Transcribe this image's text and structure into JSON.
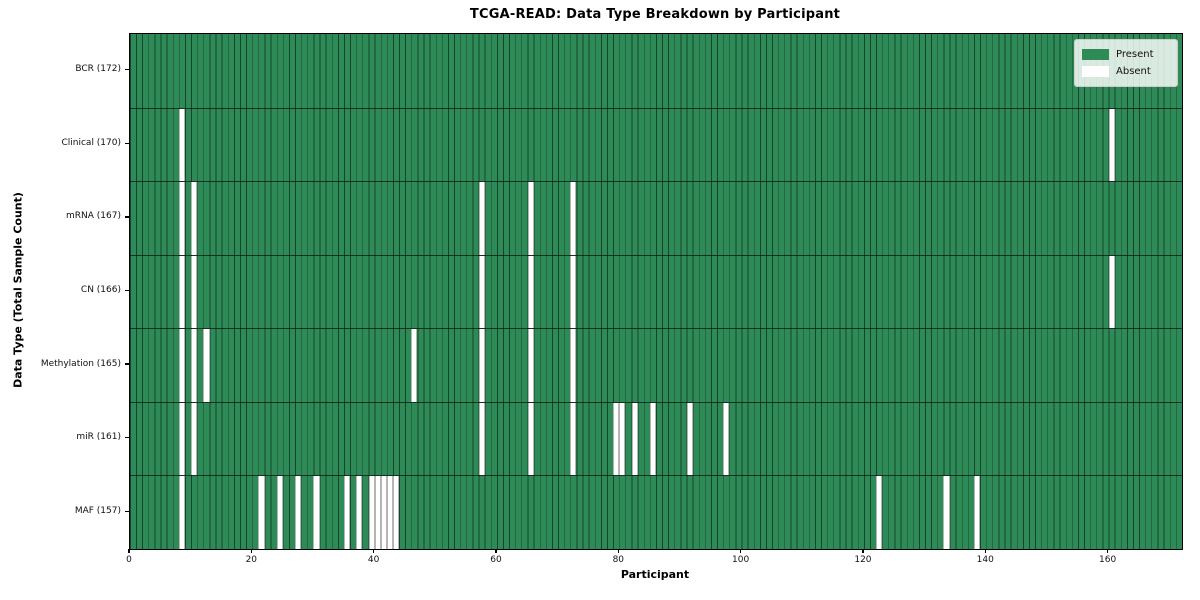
{
  "chart_data": {
    "type": "heatmap",
    "title": "TCGA-READ: Data Type Breakdown by Participant",
    "xlabel": "Participant",
    "ylabel": "Data Type (Total Sample Count)",
    "x_ticks": [
      0,
      20,
      40,
      60,
      80,
      100,
      120,
      140,
      160
    ],
    "x_max": 172,
    "n_participants": 172,
    "grid": "cell-borders",
    "legend_position": "upper right",
    "legend": {
      "present_label": "Present",
      "absent_label": "Absent"
    },
    "colors": {
      "present": "#2e8b57",
      "absent": "#ffffff",
      "cell_edge_on_green": "rgba(0,0,0,0.5)",
      "row_separator": "rgba(0,0,0,0.62)"
    },
    "rows": [
      {
        "name": "BCR",
        "label": "BCR (172)",
        "total": 172,
        "absent_participants": []
      },
      {
        "name": "Clinical",
        "label": "Clinical (170)",
        "total": 170,
        "absent_participants": [
          8,
          160
        ]
      },
      {
        "name": "mRNA",
        "label": "mRNA (167)",
        "total": 167,
        "absent_participants": [
          8,
          10,
          57,
          65,
          72
        ]
      },
      {
        "name": "CN",
        "label": "CN (166)",
        "total": 166,
        "absent_participants": [
          8,
          10,
          57,
          65,
          72,
          160
        ]
      },
      {
        "name": "Methylation",
        "label": "Methylation (165)",
        "total": 165,
        "absent_participants": [
          8,
          10,
          12,
          46,
          57,
          65,
          72
        ]
      },
      {
        "name": "miR",
        "label": "miR (161)",
        "total": 161,
        "absent_participants": [
          8,
          10,
          57,
          65,
          72,
          79,
          80,
          82,
          85,
          91,
          97
        ]
      },
      {
        "name": "MAF",
        "label": "MAF (157)",
        "total": 157,
        "absent_participants": [
          8,
          21,
          24,
          27,
          30,
          35,
          37,
          39,
          40,
          41,
          42,
          43,
          122,
          133,
          138
        ]
      }
    ]
  }
}
